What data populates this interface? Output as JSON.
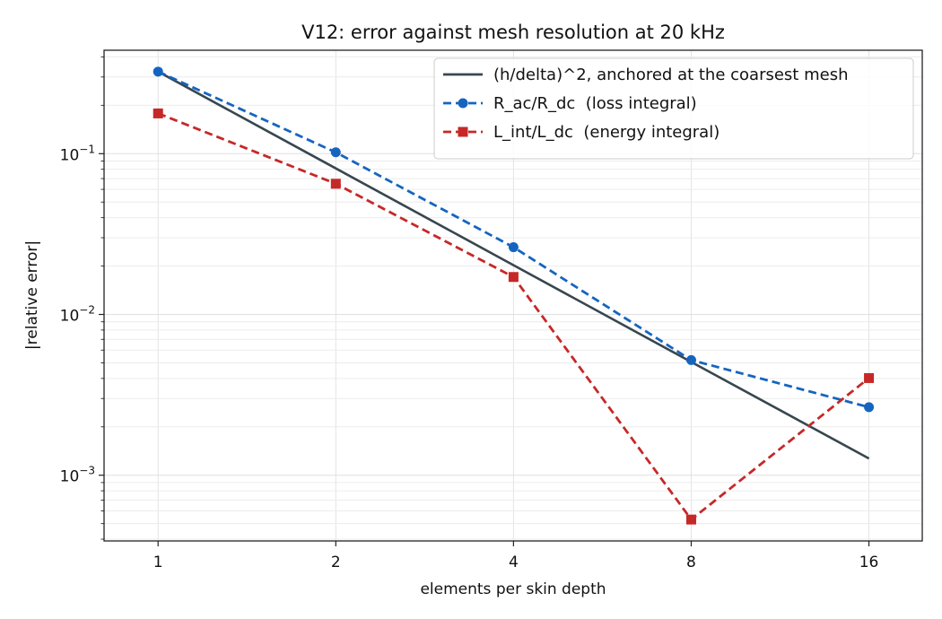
{
  "chart_data": {
    "type": "line",
    "title": "V12: error against mesh resolution at 20 kHz",
    "xlabel": "elements per skin depth",
    "ylabel": "|relative error|",
    "xscale": "log2",
    "yscale": "log",
    "xlim": [
      0.81,
      19.7
    ],
    "ylim": [
      0.00039,
      0.44
    ],
    "x_ticks": [
      1,
      2,
      4,
      8,
      16
    ],
    "x_tick_labels": [
      "1",
      "2",
      "4",
      "8",
      "16"
    ],
    "y_ticks": [
      0.001,
      0.01,
      0.1
    ],
    "y_tick_labels": [
      {
        "base": "10",
        "exp": "−3"
      },
      {
        "base": "10",
        "exp": "−2"
      },
      {
        "base": "10",
        "exp": "−1"
      }
    ],
    "grid": true,
    "legend_position": "top-right",
    "series": [
      {
        "name": "(h/delta)^2, anchored at the coarsest mesh",
        "color": "#37474f",
        "line_style": "solid",
        "marker": "none",
        "x": [
          1,
          2,
          4,
          8,
          16
        ],
        "y": [
          0.324,
          0.081,
          0.02025,
          0.00506,
          0.00127
        ]
      },
      {
        "name": "R_ac/R_dc  (loss integral)",
        "color": "#1565c0",
        "line_style": "dashed",
        "marker": "circle",
        "x": [
          1,
          2,
          4,
          8,
          16
        ],
        "y": [
          0.324,
          0.102,
          0.0262,
          0.0052,
          0.00265
        ]
      },
      {
        "name": "L_int/L_dc  (energy integral)",
        "color": "#c62828",
        "line_style": "dashed",
        "marker": "square",
        "x": [
          1,
          2,
          4,
          8,
          16
        ],
        "y": [
          0.178,
          0.065,
          0.0171,
          0.00053,
          0.00402
        ]
      }
    ]
  }
}
